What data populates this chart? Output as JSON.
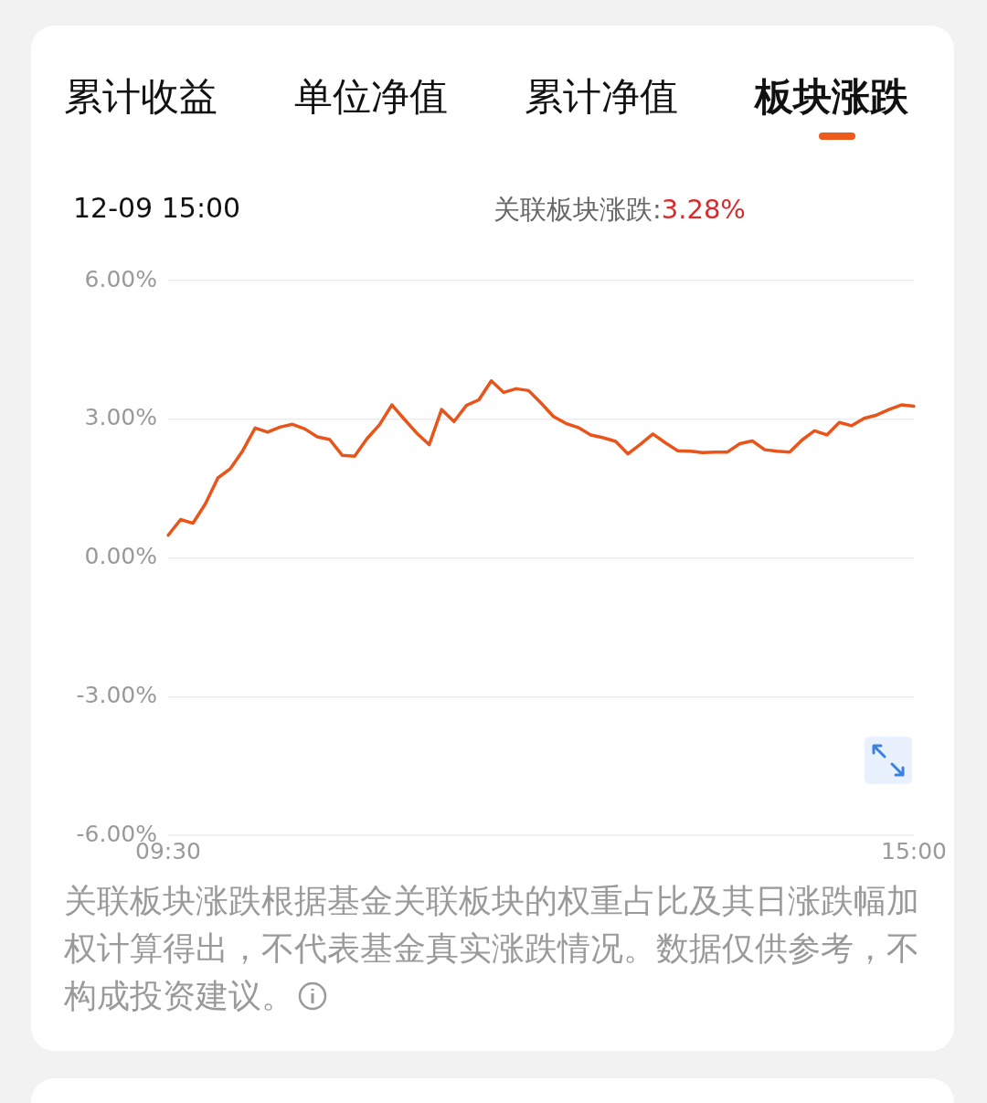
{
  "chart_data": {
    "type": "line",
    "annotations": [
      "累计收益",
      "单位净值",
      "累计净值",
      "板块涨跌",
      "12-09 15:00",
      "关联板块涨跌:",
      "3.28%",
      "关联板块涨跌根据基金关联板块的权重占比及其日涨跌幅加权计算得出，不代表基金真实涨跌情况。数据仅供参考，不构成投资建议。"
    ],
    "categories": [
      "09:30",
      null,
      null,
      null,
      null,
      null,
      null,
      null,
      null,
      null,
      null,
      null,
      null,
      null,
      null,
      null,
      null,
      null,
      null,
      null,
      null,
      null,
      null,
      null,
      null,
      null,
      null,
      null,
      null,
      null,
      null,
      null,
      null,
      null,
      null,
      null,
      null,
      null,
      null,
      null,
      null,
      null,
      null,
      null,
      null,
      null,
      null,
      null,
      null,
      null,
      null,
      null,
      null,
      null,
      null,
      null,
      null,
      null,
      null,
      null,
      "15:00"
    ],
    "series": [
      {
        "color": "#e8541a",
        "values": [
          0.49,
          0.83,
          0.75,
          1.17,
          1.73,
          1.93,
          2.32,
          2.81,
          2.72,
          2.83,
          2.89,
          2.79,
          2.62,
          2.56,
          2.22,
          2.2,
          2.58,
          2.88,
          3.31,
          3.0,
          2.7,
          2.45,
          3.21,
          2.95,
          3.3,
          3.42,
          3.83,
          3.58,
          3.66,
          3.62,
          3.35,
          3.06,
          2.91,
          2.82,
          2.66,
          2.6,
          2.52,
          2.25,
          2.46,
          2.68,
          2.49,
          2.32,
          2.31,
          2.28,
          2.29,
          2.29,
          2.47,
          2.53,
          2.34,
          2.31,
          2.29,
          2.55,
          2.75,
          2.66,
          2.93,
          2.86,
          3.02,
          3.09,
          3.21,
          3.31,
          3.28
        ]
      }
    ],
    "ylim": [
      -6,
      6
    ],
    "yticks": [
      {
        "value": -6,
        "label": "-6.00%"
      },
      {
        "value": -3,
        "label": "-3.00%"
      },
      {
        "value": 0,
        "label": "0.00%"
      },
      {
        "value": 3,
        "label": "3.00%"
      },
      {
        "value": 6,
        "label": "6.00%"
      }
    ],
    "grid": "y",
    "legend": false,
    "marker": "none",
    "line_style": "solid"
  }
}
